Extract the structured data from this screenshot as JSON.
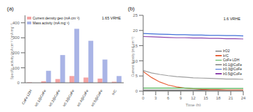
{
  "chart_data": [
    {
      "type": "bar",
      "title": "(a)",
      "annotation": "1.65 VRHE",
      "y_label": "Specific activity (mA cm⁻² / mA mg⁻¹)",
      "categories": [
        "CoFe LDH",
        "Ir0.1@CoFe",
        "Ir0.2@CoFe",
        "Ir0.3@CoFe",
        "Ir0.4@CoFe",
        "Ir0.5@CoFe",
        "Ir/C"
      ],
      "series": [
        {
          "name": "Current density geo (mA cm⁻²)",
          "color": "#f4a3a3",
          "values": [
            3,
            10,
            25,
            45,
            35,
            28,
            7
          ]
        },
        {
          "name": "Mass activity (mA mg⁻¹)",
          "color": "#a9b4e6",
          "values": [
            0,
            80,
            185,
            360,
            280,
            155,
            45
          ]
        }
      ],
      "ylim": [
        0,
        450
      ],
      "yticks": [
        0,
        100,
        200,
        300,
        400
      ],
      "legend": "upper left"
    },
    {
      "type": "line",
      "title": "(b)",
      "annotation": "1.6 VRHE",
      "x_label": "Time (h)",
      "y_label": "Current density (mA cm⁻²)",
      "x": [
        0,
        2,
        4,
        6,
        8,
        10,
        12,
        14,
        16,
        18,
        20,
        22,
        24
      ],
      "series": [
        {
          "name": "IrO2",
          "color": "#555555",
          "values": [
            0.3,
            0.3,
            0.3,
            0.3,
            0.3,
            0.3,
            0.3,
            0.3,
            0.3,
            0.3,
            0.3,
            0.3,
            0.3
          ]
        },
        {
          "name": "Ir/C",
          "color": "#e8643c",
          "values": [
            6.5,
            4.5,
            3.0,
            2.0,
            1.4,
            1.0,
            0.8,
            0.6,
            0.5,
            0.5,
            0.4,
            0.4,
            0.4
          ]
        },
        {
          "name": "CoFe LDH",
          "color": "#4caf50",
          "values": [
            1.0,
            1.0,
            1.0,
            1.0,
            1.0,
            1.0,
            0.9,
            0.9,
            0.9,
            0.9,
            0.9,
            0.9,
            0.9
          ]
        },
        {
          "name": "Ir0.1@CoFe",
          "color": "#9e9e9e",
          "values": [
            6.8,
            6.0,
            5.5,
            5.1,
            4.8,
            4.6,
            4.4,
            4.3,
            4.2,
            4.1,
            4.0,
            4.0,
            3.9
          ]
        },
        {
          "name": "Ir0.3@CoFe",
          "color": "#3f6fd8",
          "values": [
            19.0,
            18.9,
            18.8,
            18.7,
            18.6,
            18.6,
            18.5,
            18.5,
            18.4,
            18.4,
            18.3,
            18.3,
            18.2
          ]
        },
        {
          "name": "Ir0.5@CoFe",
          "color": "#8e44ad",
          "values": [
            18.0,
            17.9,
            17.8,
            17.7,
            17.6,
            17.6,
            17.5,
            17.5,
            17.4,
            17.4,
            17.3,
            17.3,
            17.2
          ]
        }
      ],
      "xlim": [
        0,
        24
      ],
      "xticks": [
        0,
        3,
        6,
        9,
        12,
        15,
        18,
        21,
        24
      ],
      "ylim": [
        0,
        25
      ],
      "yticks": [
        0,
        5,
        10,
        15,
        20,
        25
      ],
      "legend": "center right"
    }
  ]
}
